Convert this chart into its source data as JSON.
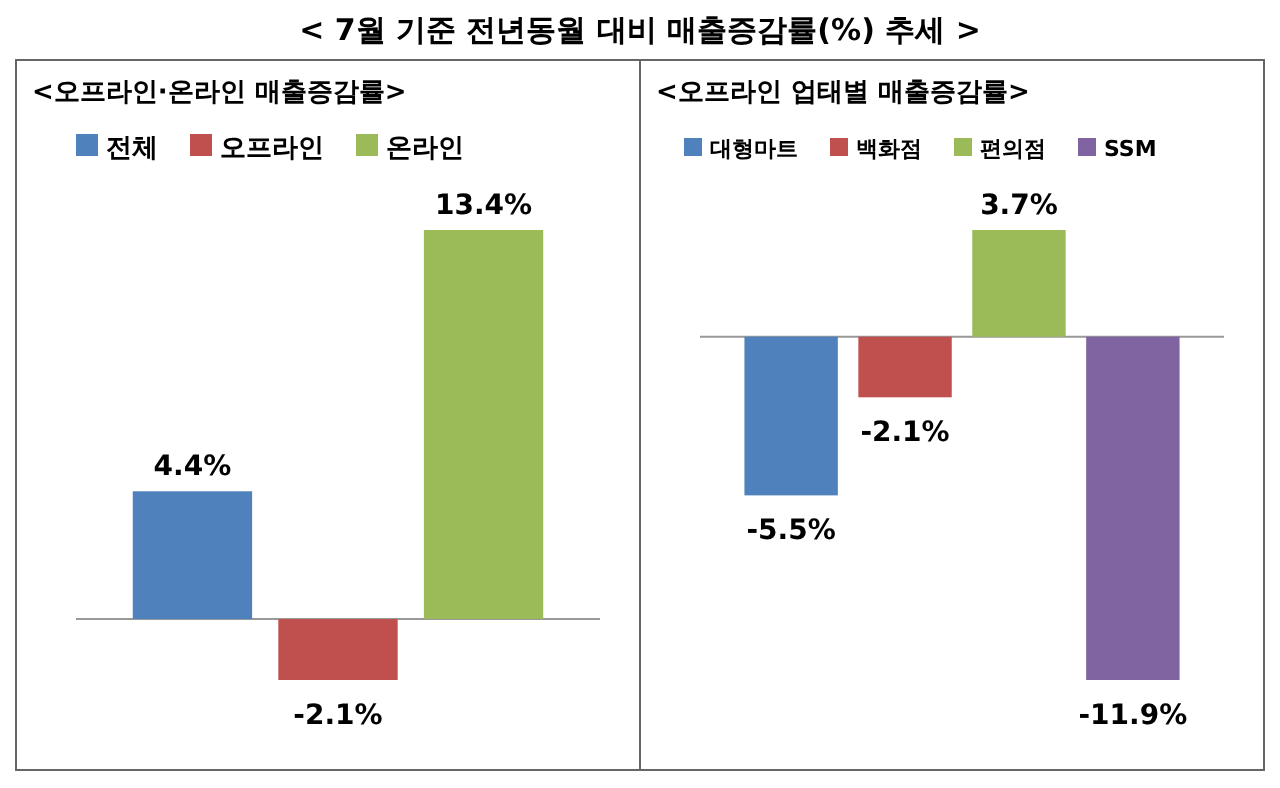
{
  "chart_data": [
    {
      "type": "bar",
      "title": "< 7월 기준 전년동월 대비 매출증감률(%) 추세 >",
      "subtitle": "<오프라인·온라인 매출증감률>",
      "categories": [
        null
      ],
      "legend": "top",
      "series": [
        {
          "name": "전체",
          "color": "#4f81bd",
          "values": [
            4.4
          ],
          "value_labels": [
            "4.4%"
          ]
        },
        {
          "name": "오프라인",
          "color": "#c0504d",
          "values": [
            -2.1
          ],
          "value_labels": [
            "-2.1%"
          ]
        },
        {
          "name": "온라인",
          "color": "#9bbb59",
          "values": [
            13.4
          ],
          "value_labels": [
            "13.4%"
          ]
        }
      ]
    },
    {
      "type": "bar",
      "subtitle": "<오프라인 업태별 매출증감률>",
      "categories": [
        null
      ],
      "legend": "top",
      "series": [
        {
          "name": "대형마트",
          "color": "#4f81bd",
          "values": [
            -5.5
          ],
          "value_labels": [
            "-5.5%"
          ]
        },
        {
          "name": "백화점",
          "color": "#c0504d",
          "values": [
            -2.1
          ],
          "value_labels": [
            "-2.1%"
          ]
        },
        {
          "name": "편의점",
          "color": "#9bbb59",
          "values": [
            3.7
          ],
          "value_labels": [
            "3.7%"
          ]
        },
        {
          "name": "SSM",
          "color": "#8064a2",
          "values": [
            -11.9
          ],
          "value_labels": [
            "-11.9%"
          ]
        }
      ]
    }
  ]
}
